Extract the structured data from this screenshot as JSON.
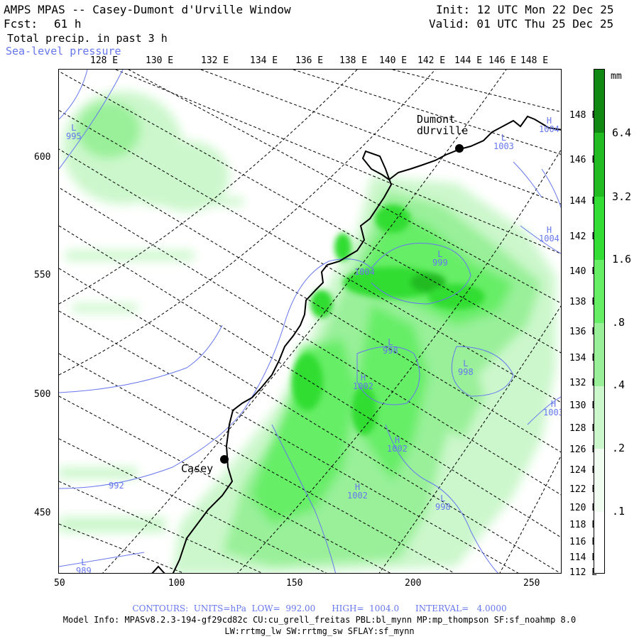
{
  "header": {
    "title": "AMPS MPAS -- Casey-Dumont d'Urville Window",
    "init": "Init: 12 UTC Mon 22 Dec 25",
    "forecast_label": "Fcst:",
    "forecast_value": "61 h",
    "valid": "Valid: 01 UTC Thu 25 Dec 25",
    "field_primary": "Total precip. in past 3 h",
    "field_secondary": "Sea-level pressure"
  },
  "axes": {
    "top_lon_labels": [
      "128 E",
      "130 E",
      "132 E",
      "134 E",
      "136 E",
      "138 E",
      "140 E",
      "142 E",
      "144 E",
      "146 E",
      "148 E"
    ],
    "right_lon_labels": [
      "148 E",
      "146 E",
      "144 E",
      "142 E",
      "140 E",
      "138 E",
      "136 E",
      "134 E",
      "132 E",
      "130 E",
      "128 E",
      "126 E",
      "124 E",
      "122 E",
      "120 E",
      "118 E",
      "116 E",
      "114 E",
      "112 E"
    ],
    "left_y_labels": [
      "600",
      "550",
      "500",
      "450"
    ],
    "bottom_x_labels": [
      "50",
      "100",
      "150",
      "200",
      "250"
    ]
  },
  "colorbar": {
    "unit": "mm",
    "levels": [
      "6.4",
      "3.2",
      "1.6",
      ".8",
      ".4",
      ".2",
      ".1"
    ],
    "colors": [
      "#118811",
      "#22bb22",
      "#33dd33",
      "#66ee66",
      "#99f099",
      "#ccf7cc",
      "#ffffff"
    ]
  },
  "places": {
    "dumont": {
      "line1": "Dumont",
      "line2": "dUrville"
    },
    "casey": "Casey"
  },
  "pressure_labels": [
    {
      "id": "l-nw",
      "sym": "L",
      "val": "995"
    },
    {
      "id": "h-ne",
      "sym": "H",
      "val": "1004"
    },
    {
      "id": "l-ne",
      "sym": "L",
      "val": "1003"
    },
    {
      "id": "h-e",
      "sym": "H",
      "val": "1004"
    },
    {
      "id": "l-c",
      "sym": "L",
      "val": "999"
    },
    {
      "id": "c-1004",
      "sym": "",
      "val": "1004"
    },
    {
      "id": "l-998a",
      "sym": "L",
      "val": "998"
    },
    {
      "id": "l-998b",
      "sym": "L",
      "val": "998"
    },
    {
      "id": "h-1002a",
      "sym": "H",
      "val": "1002"
    },
    {
      "id": "h-1003",
      "sym": "H",
      "val": "1003"
    },
    {
      "id": "h-1002b",
      "sym": "H",
      "val": "1002"
    },
    {
      "id": "c-992",
      "sym": "",
      "val": "992"
    },
    {
      "id": "h-1002c",
      "sym": "H",
      "val": "1002"
    },
    {
      "id": "l-998c",
      "sym": "L",
      "val": "998"
    },
    {
      "id": "l-sw",
      "sym": "L",
      "val": "989"
    }
  ],
  "footer": {
    "contours": "CONTOURS:  UNITS=hPa  LOW=  992.00      HIGH=  1004.0      INTERVAL=   4.0000",
    "model_info_1": "Model Info: MPASv8.2.3-194-gf29cd82c CU:cu_grell_freitas PBL:bl_mynn MP:mp_thompson SF:sf_noahmp 8.0",
    "model_info_2": "LW:rrtmg_lw SW:rrtmg_sw SFLAY:sf_mynn"
  }
}
